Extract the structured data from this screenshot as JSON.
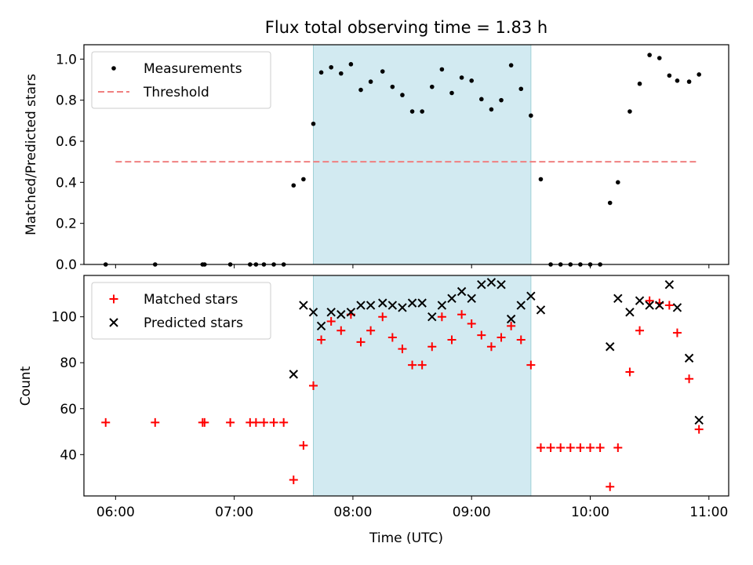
{
  "chart_data": [
    {
      "type": "scatter",
      "title": "Flux total observing time = 1.83 h",
      "xlabel": "",
      "ylabel": "Matched/Predicted stars",
      "xlim": [
        "05:44",
        "11:10"
      ],
      "ylim": [
        0,
        1.07
      ],
      "yticks": [
        0.0,
        0.2,
        0.4,
        0.6,
        0.8,
        1.0
      ],
      "ytick_labels": [
        "0.0",
        "0.2",
        "0.4",
        "0.6",
        "0.8",
        "1.0"
      ],
      "legend_location": "upper left",
      "shaded_interval": {
        "from": "07:40",
        "to": "09:30",
        "color": "#add8e6"
      },
      "series": [
        {
          "name": "Measurements",
          "marker": "dot",
          "color": "#000000",
          "x": [
            "05:55",
            "06:20",
            "06:44",
            "06:45",
            "06:58",
            "07:08",
            "07:11",
            "07:15",
            "07:20",
            "07:25",
            "07:30",
            "07:35",
            "07:40",
            "07:44",
            "07:49",
            "07:54",
            "07:59",
            "08:04",
            "08:09",
            "08:15",
            "08:20",
            "08:25",
            "08:30",
            "08:35",
            "08:40",
            "08:45",
            "08:50",
            "08:55",
            "09:00",
            "09:05",
            "09:10",
            "09:15",
            "09:20",
            "09:25",
            "09:30",
            "09:35",
            "09:40",
            "09:45",
            "09:50",
            "09:55",
            "10:00",
            "10:05",
            "10:10",
            "10:14",
            "10:20",
            "10:25",
            "10:30",
            "10:35",
            "10:40",
            "10:44",
            "10:50",
            "10:55"
          ],
          "y": [
            0,
            0,
            0,
            0,
            0,
            0,
            0,
            0,
            0,
            0,
            0.385,
            0.415,
            0.685,
            0.935,
            0.96,
            0.93,
            0.975,
            0.85,
            0.89,
            0.94,
            0.865,
            0.825,
            0.745,
            0.745,
            0.865,
            0.95,
            0.835,
            0.91,
            0.895,
            0.805,
            0.755,
            0.8,
            0.97,
            0.855,
            0.725,
            0.415,
            0,
            0,
            0,
            0,
            0,
            0,
            0.3,
            0.4,
            0.745,
            0.88,
            1.02,
            1.005,
            0.92,
            0.895,
            0.89,
            0.925
          ]
        },
        {
          "name": "Threshold",
          "style": "dashed",
          "color": "#f08080",
          "x": [
            "06:00",
            "10:55"
          ],
          "y": [
            0.5,
            0.5
          ]
        }
      ]
    },
    {
      "type": "scatter",
      "title": "",
      "xlabel": "Time (UTC)",
      "ylabel": "Count",
      "xlim": [
        "05:44",
        "11:10"
      ],
      "ylim": [
        22,
        118
      ],
      "yticks": [
        40,
        60,
        80,
        100
      ],
      "ytick_labels": [
        "40",
        "60",
        "80",
        "100"
      ],
      "xticks": [
        "06:00",
        "07:00",
        "08:00",
        "09:00",
        "10:00",
        "11:00"
      ],
      "xtick_labels": [
        "06:00",
        "07:00",
        "08:00",
        "09:00",
        "10:00",
        "11:00"
      ],
      "legend_location": "upper left",
      "shaded_interval": {
        "from": "07:40",
        "to": "09:30",
        "color": "#add8e6"
      },
      "series": [
        {
          "name": "Matched stars",
          "marker": "plus",
          "color": "#ff0000",
          "x": [
            "05:55",
            "06:20",
            "06:44",
            "06:45",
            "06:58",
            "07:08",
            "07:11",
            "07:15",
            "07:20",
            "07:25",
            "07:30",
            "07:35",
            "07:40",
            "07:44",
            "07:49",
            "07:54",
            "07:59",
            "08:04",
            "08:09",
            "08:15",
            "08:20",
            "08:25",
            "08:30",
            "08:35",
            "08:40",
            "08:45",
            "08:50",
            "08:55",
            "09:00",
            "09:05",
            "09:10",
            "09:15",
            "09:20",
            "09:25",
            "09:30",
            "09:35",
            "09:40",
            "09:45",
            "09:50",
            "09:55",
            "10:00",
            "10:05",
            "10:10",
            "10:14",
            "10:20",
            "10:25",
            "10:30",
            "10:35",
            "10:40",
            "10:44",
            "10:50",
            "10:55"
          ],
          "y": [
            54,
            54,
            54,
            54,
            54,
            54,
            54,
            54,
            54,
            54,
            29,
            44,
            70,
            90,
            98,
            94,
            101,
            89,
            94,
            100,
            91,
            86,
            79,
            79,
            87,
            100,
            90,
            101,
            97,
            92,
            87,
            91,
            96,
            90,
            79,
            43,
            43,
            43,
            43,
            43,
            43,
            43,
            26,
            43,
            76,
            94,
            107,
            106,
            105,
            93,
            73,
            51
          ]
        },
        {
          "name": "Predicted stars",
          "marker": "x",
          "color": "#000000",
          "x": [
            "07:30",
            "07:35",
            "07:40",
            "07:44",
            "07:49",
            "07:54",
            "07:59",
            "08:04",
            "08:09",
            "08:15",
            "08:20",
            "08:25",
            "08:30",
            "08:35",
            "08:40",
            "08:45",
            "08:50",
            "08:55",
            "09:00",
            "09:05",
            "09:10",
            "09:15",
            "09:20",
            "09:25",
            "09:30",
            "09:35",
            "10:10",
            "10:14",
            "10:20",
            "10:25",
            "10:30",
            "10:35",
            "10:40",
            "10:44",
            "10:50",
            "10:55"
          ],
          "y": [
            75,
            105,
            102,
            96,
            102,
            101,
            102,
            105,
            105,
            106,
            105,
            104,
            106,
            106,
            100,
            105,
            108,
            111,
            108,
            114,
            115,
            114,
            99,
            105,
            109,
            103,
            87,
            108,
            102,
            107,
            105,
            105,
            114,
            104,
            82,
            55
          ]
        }
      ]
    }
  ]
}
